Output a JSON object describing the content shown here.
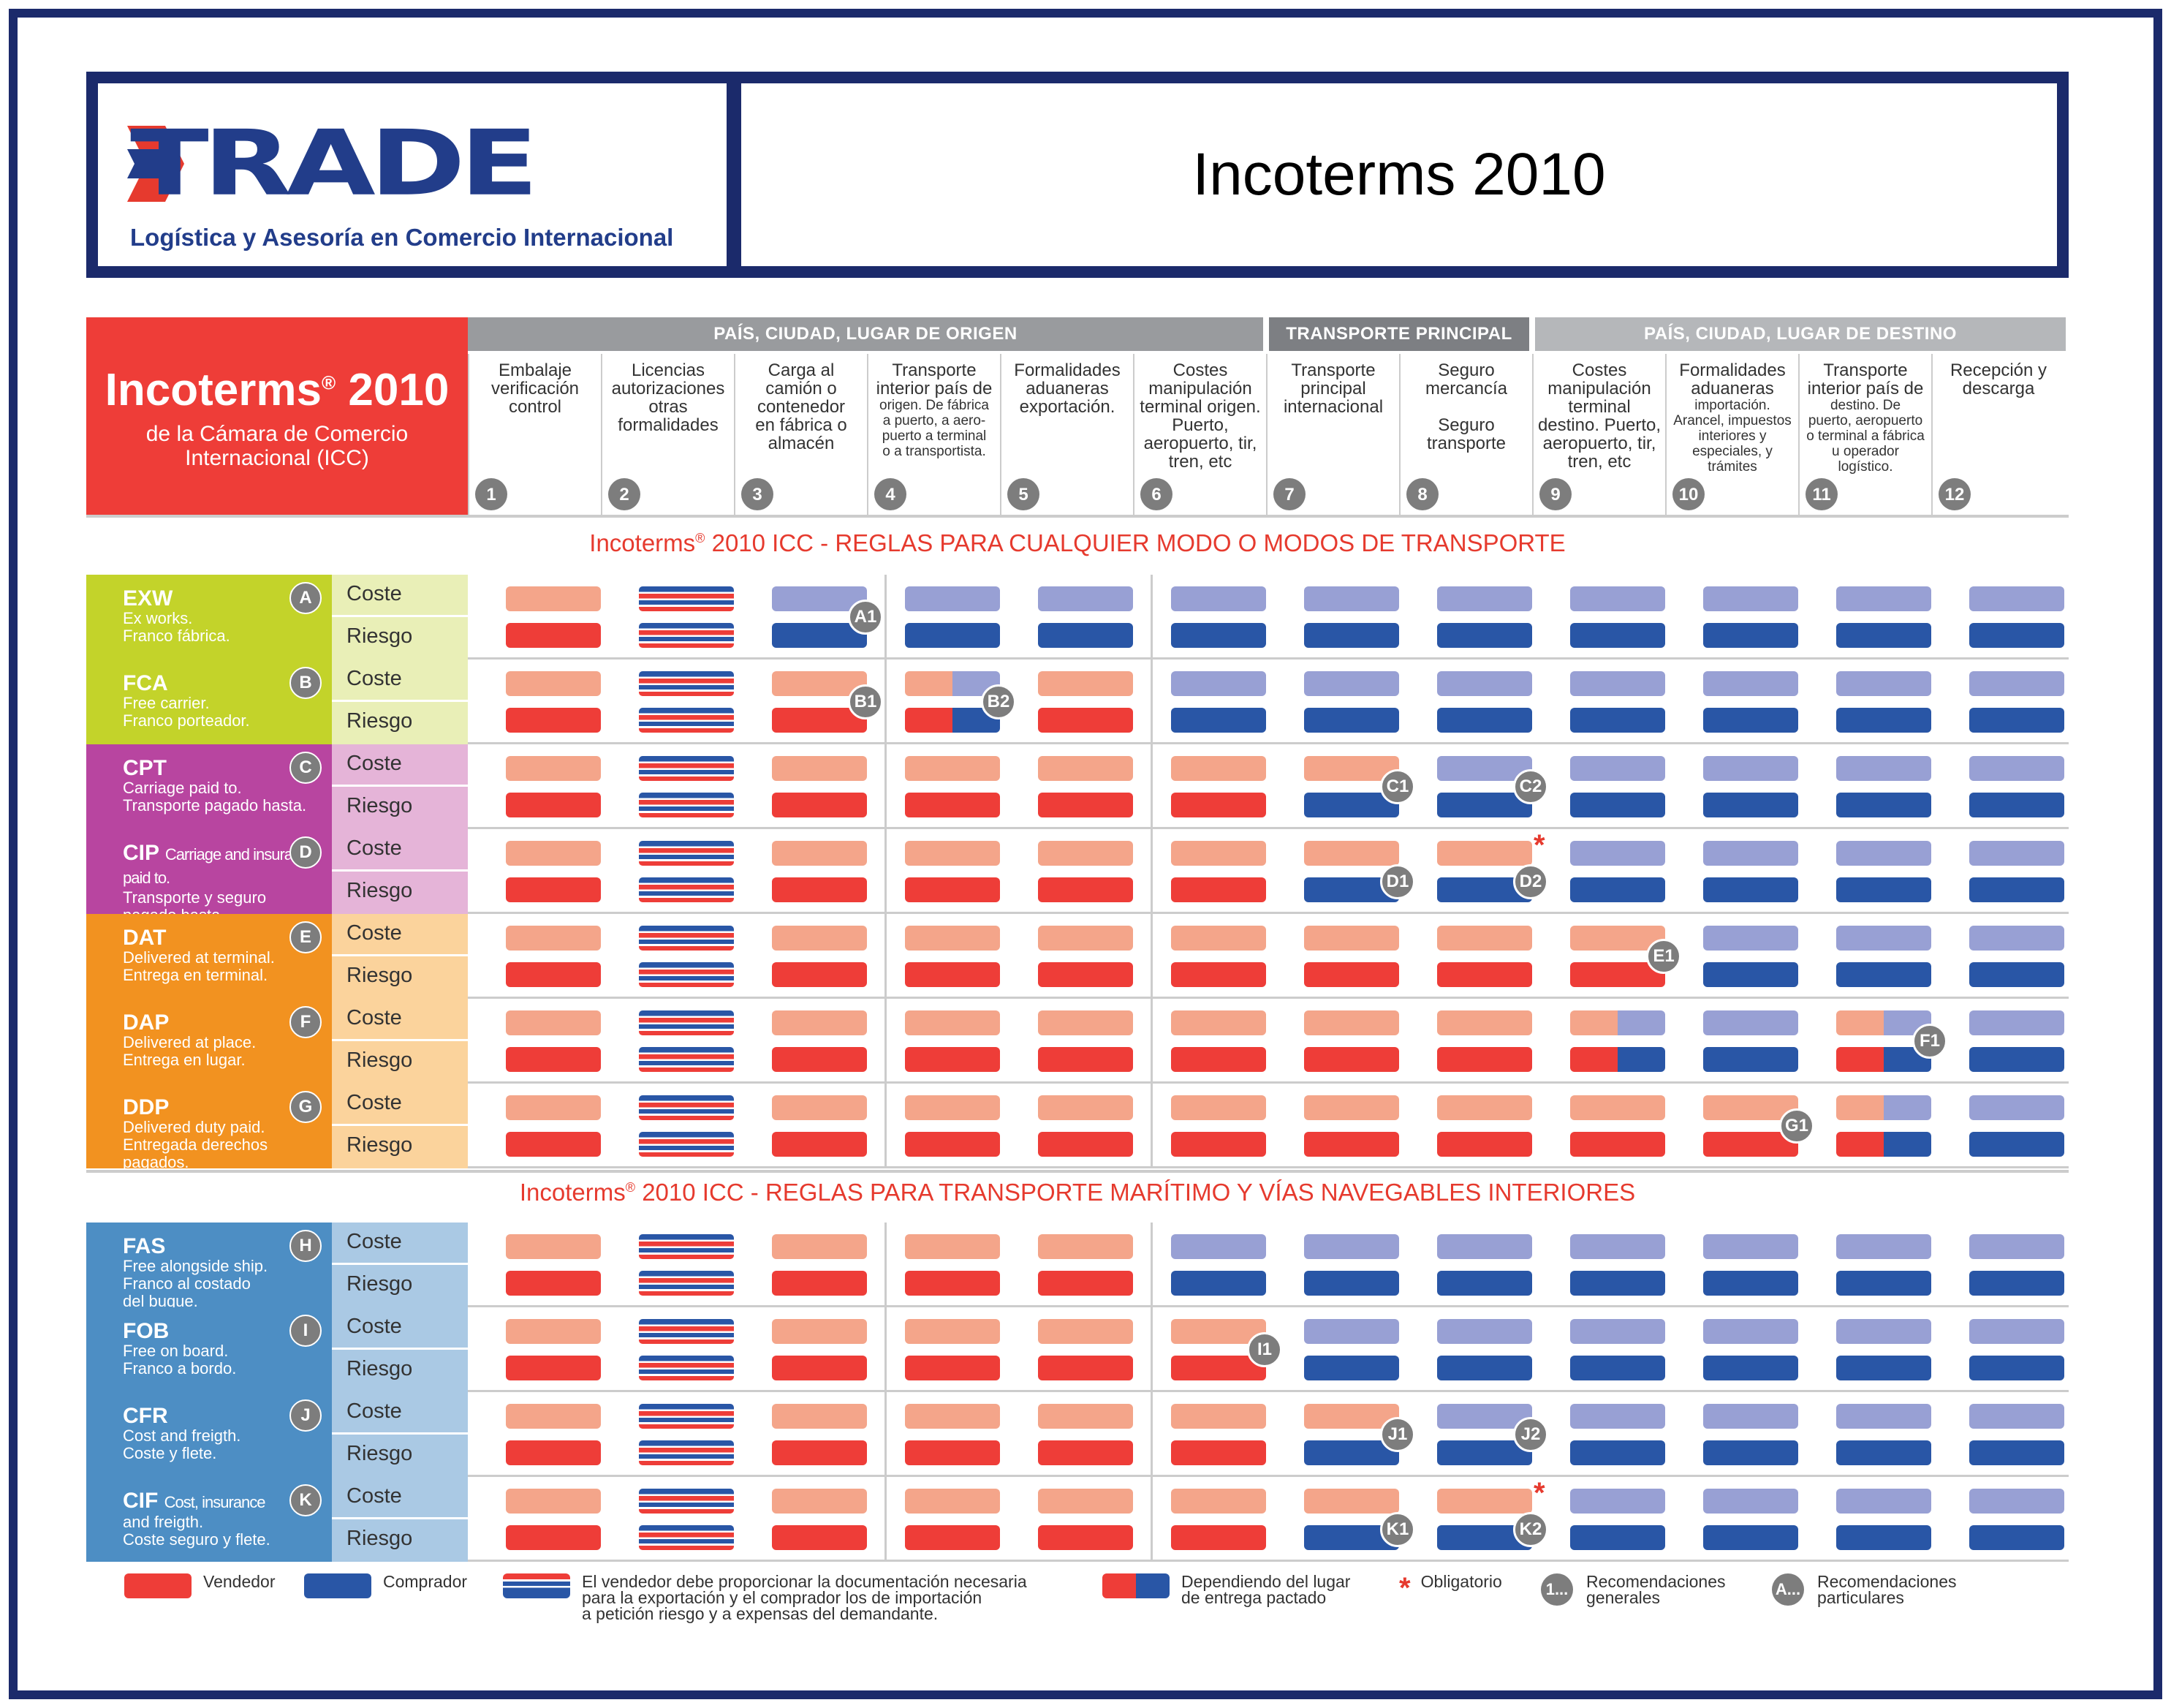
{
  "header": {
    "logo_word": "TRADE",
    "logo_tagline": "Logística y Asesoría en Comercio Internacional",
    "title": "Incoterms 2010"
  },
  "table_header": {
    "brand": "Incoterms",
    "brand_sup": "®",
    "brand_year": "2010",
    "subtitle_1": "de la Cámara de Comercio",
    "subtitle_2": "Internacional (ICC)",
    "groups": [
      {
        "label": "PAÍS, CIUDAD, LUGAR DE ORIGEN",
        "color": "#999b9e"
      },
      {
        "label": "TRANSPORTE PRINCIPAL",
        "color": "#7d7f83"
      },
      {
        "label": "PAÍS, CIUDAD, LUGAR DE DESTINO",
        "color": "#b5b7ba"
      }
    ],
    "columns": [
      {
        "num": "1",
        "lines": [
          "Embalaje",
          "verificación",
          "control"
        ]
      },
      {
        "num": "2",
        "lines": [
          "Licencias",
          "autorizaciones",
          "otras",
          "formalidades"
        ]
      },
      {
        "num": "3",
        "lines": [
          "Carga al",
          "camión o",
          "contenedor",
          "en fábrica o",
          "almacén"
        ]
      },
      {
        "num": "4",
        "lines": [
          "Transporte",
          "interior país de",
          "origen. De fábrica",
          "a puerto, a aero-",
          "puerto a terminal",
          "o a transportista."
        ]
      },
      {
        "num": "5",
        "lines": [
          "Formalidades",
          "aduaneras",
          "exportación."
        ]
      },
      {
        "num": "6",
        "lines": [
          "Costes",
          "manipulación",
          "terminal origen.",
          "Puerto,",
          "aeropuerto, tir,",
          "tren, etc"
        ]
      },
      {
        "num": "7",
        "lines": [
          "Transporte",
          "principal",
          "internacional"
        ]
      },
      {
        "num": "8",
        "lines": [
          "Seguro",
          "mercancía",
          "",
          "Seguro",
          "transporte"
        ]
      },
      {
        "num": "9",
        "lines": [
          "Costes",
          "manipulación",
          "terminal",
          "destino. Puerto,",
          "aeropuerto, tir,",
          "tren, etc"
        ]
      },
      {
        "num": "10",
        "lines": [
          "Formalidades",
          "aduaneras",
          "importación.",
          "Arancel, impuestos",
          "interiores y",
          "especiales, y",
          "trámites"
        ]
      },
      {
        "num": "11",
        "lines": [
          "Transporte",
          "interior país de",
          "destino. De",
          "puerto, aeropuerto",
          "o terminal a fábrica",
          "u operador",
          "logístico."
        ]
      },
      {
        "num": "12",
        "lines": [
          "Recepción y",
          "descarga"
        ]
      }
    ]
  },
  "sections": [
    {
      "brand": "Incoterms",
      "sup": "®",
      "text": " 2010 ICC - REGLAS PARA CUALQUIER MODO O MODOS DE TRANSPORTE"
    },
    {
      "brand": "Incoterms",
      "sup": "®",
      "text": " 2010 ICC - REGLAS PARA TRANSPORTE MARÍTIMO Y VÍAS NAVEGABLES INTERIORES"
    }
  ],
  "cost_label": "Coste",
  "risk_label": "Riesgo",
  "rows": [
    {
      "code": "EXW",
      "code_small": "",
      "desc": [
        "Ex works.",
        "Franco fábrica."
      ],
      "letter": "A",
      "name_bg": "#c3d32a",
      "cell_bg": "#e9efb7",
      "cost": "SSBBBBBBBBBB",
      "risk": "SSBBBBBBBBBB",
      "badges": [
        {
          "t": "A1",
          "c": 3,
          "r": "mid"
        }
      ]
    },
    {
      "code": "FCA",
      "code_small": "",
      "desc": [
        "Free carrier.",
        "Franco porteador."
      ],
      "letter": "B",
      "name_bg": "#c3d32a",
      "cell_bg": "#e9efb7",
      "cost": "SSSMSBBBBBBB",
      "risk": "SSSMSBBBBBBB",
      "badges": [
        {
          "t": "B1",
          "c": 3,
          "r": "mid"
        },
        {
          "t": "B2",
          "c": 4,
          "r": "mid"
        }
      ]
    },
    {
      "code": "CPT",
      "code_small": "",
      "desc": [
        "Carriage paid to.",
        "Transporte pagado hasta."
      ],
      "letter": "C",
      "name_bg": "#b845a0",
      "cell_bg": "#e5b4d8",
      "cost": "SSSSSSSBBBBB",
      "risk": "SSSSSSBBBBBB",
      "badges": [
        {
          "t": "C1",
          "c": 7,
          "r": "mid"
        },
        {
          "t": "C2",
          "c": 8,
          "r": "mid"
        }
      ]
    },
    {
      "code": "CIP",
      "code_small": "Carriage and insurance paid to.",
      "desc": [
        "Transporte y seguro",
        "pagado hasta."
      ],
      "letter": "D",
      "name_bg": "#b845a0",
      "cell_bg": "#e5b4d8",
      "cost": "SSSSSSSSBBBB",
      "risk": "SSSSSSBBBBBB",
      "star": 8,
      "badges": [
        {
          "t": "D1",
          "c": 7,
          "r": "low"
        },
        {
          "t": "D2",
          "c": 8,
          "r": "low"
        }
      ]
    },
    {
      "code": "DAT",
      "code_small": "",
      "desc": [
        "Delivered at terminal.",
        "Entrega en terminal."
      ],
      "letter": "E",
      "name_bg": "#f29220",
      "cell_bg": "#fbd39c",
      "cost": "SSSSSSSSSBBB",
      "risk": "SSSSSSSSSBBB",
      "badges": [
        {
          "t": "E1",
          "c": 9,
          "r": "mid"
        }
      ]
    },
    {
      "code": "DAP",
      "code_small": "",
      "desc": [
        "Delivered at place.",
        "Entrega en lugar."
      ],
      "letter": "F",
      "name_bg": "#f29220",
      "cell_bg": "#fbd39c",
      "cost": "SSSSSSSSMBMB",
      "risk": "SSSSSSSSMBMB",
      "badges": [
        {
          "t": "F1",
          "c": 11,
          "r": "mid"
        }
      ]
    },
    {
      "code": "DDP",
      "code_small": "",
      "desc": [
        "Delivered duty paid.",
        "Entregada derechos",
        "pagados."
      ],
      "letter": "G",
      "name_bg": "#f29220",
      "cell_bg": "#fbd39c",
      "cost": "SSSSSSSSSSMB",
      "risk": "SSSSSSSSSSMB",
      "badges": [
        {
          "t": "G1",
          "c": 10,
          "r": "mid"
        }
      ]
    },
    {
      "code": "FAS",
      "code_small": "",
      "desc": [
        "Free alongside ship.",
        "Franco al costado",
        "del buque."
      ],
      "letter": "H",
      "name_bg": "#4d8ec4",
      "cell_bg": "#aac9e4",
      "cost": "SSSSSBBBBBBB",
      "risk": "SSSSSBBBBBBB",
      "badges": []
    },
    {
      "code": "FOB",
      "code_small": "",
      "desc": [
        "Free on board.",
        "Franco a bordo."
      ],
      "letter": "I",
      "name_bg": "#4d8ec4",
      "cell_bg": "#aac9e4",
      "cost": "SSSSSSBBBBBB",
      "risk": "SSSSSSBBBBBB",
      "badges": [
        {
          "t": "I1",
          "c": 6,
          "r": "mid"
        }
      ]
    },
    {
      "code": "CFR",
      "code_small": "",
      "desc": [
        "Cost and freigth.",
        "Coste y flete."
      ],
      "letter": "J",
      "name_bg": "#4d8ec4",
      "cell_bg": "#aac9e4",
      "cost": "SSSSSSSBBBBB",
      "risk": "SSSSSSBBBBBB",
      "badges": [
        {
          "t": "J1",
          "c": 7,
          "r": "mid"
        },
        {
          "t": "J2",
          "c": 8,
          "r": "mid"
        }
      ]
    },
    {
      "code": "CIF",
      "code_small": "Cost, insurance",
      "desc": [
        "and freigth.",
        "Coste seguro y flete."
      ],
      "letter": "K",
      "name_bg": "#4d8ec4",
      "cell_bg": "#aac9e4",
      "cost": "SSSSSSSSBBBB",
      "risk": "SSSSSSBBBBBB",
      "star": 8,
      "badges": [
        {
          "t": "K1",
          "c": 7,
          "r": "low"
        },
        {
          "t": "K2",
          "c": 8,
          "r": "low"
        }
      ]
    }
  ],
  "colors": {
    "seller_cost": "#f4a58a",
    "seller_risk": "#ee3d38",
    "buyer_cost": "#98a0d4",
    "buyer_risk": "#2956a6",
    "stripe_red": "#ee3d38",
    "stripe_blue": "#2956a6"
  },
  "legend": {
    "seller": "Vendedor",
    "buyer": "Comprador",
    "docs": [
      "El vendedor debe proporcionar la documentación necesaria",
      "para la exportación y el comprador los de importación",
      "a petición riesgo y a expensas del demandante."
    ],
    "depends": [
      "Dependiendo del lugar",
      "de entrega pactado"
    ],
    "mandatory_mark": "*",
    "mandatory": "Obligatorio",
    "general_mark": "1...",
    "general": [
      "Recomendaciones",
      "generales"
    ],
    "particular_mark": "A...",
    "particular": [
      "Recomendaciones",
      "particulares"
    ]
  }
}
